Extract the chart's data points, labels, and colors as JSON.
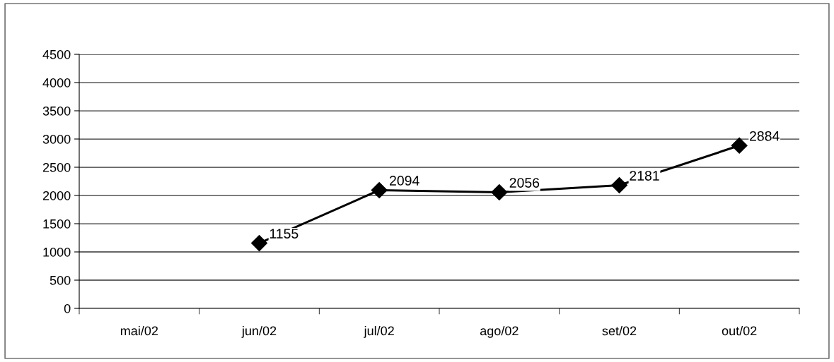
{
  "chart_data": {
    "type": "line",
    "categories": [
      "mai/02",
      "jun/02",
      "jul/02",
      "ago/02",
      "set/02",
      "out/02"
    ],
    "series": [
      {
        "color": "#000000",
        "values": [
          null,
          1155,
          2094,
          2056,
          2181,
          2884
        ]
      }
    ],
    "ylim": [
      0,
      4500
    ],
    "yticks": [
      0,
      500,
      1000,
      1500,
      2000,
      2500,
      3000,
      3500,
      4000,
      4500
    ],
    "grid": "y",
    "marker": "diamond",
    "line_style": "solid",
    "data_labels": true,
    "legend": false
  }
}
